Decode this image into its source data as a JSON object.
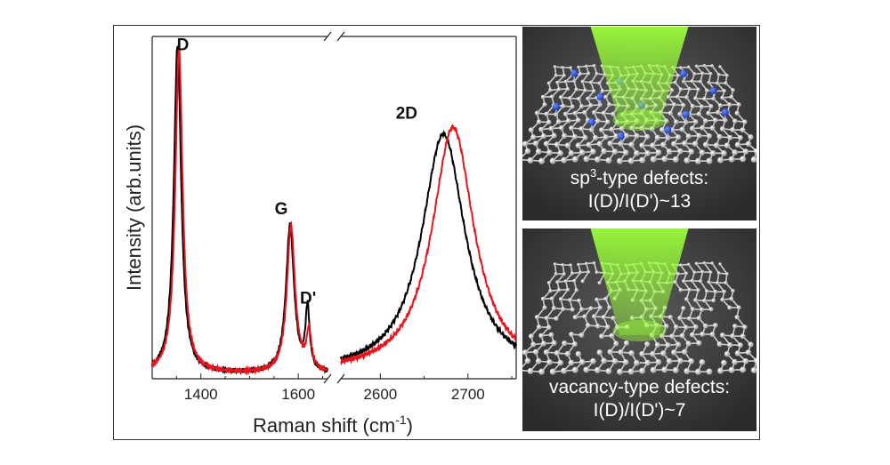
{
  "chart_data": {
    "type": "line",
    "ylabel": "Intensity (arb.units)",
    "xlabel": "Raman shift (cm",
    "xlabel_sup": "-1",
    "xlabel_end": ")",
    "x_segments": [
      {
        "xlim": [
          1300,
          1660
        ],
        "ticks": [
          1400,
          1600
        ]
      },
      {
        "xlim": [
          2555,
          2755
        ],
        "ticks": [
          2600,
          2700
        ]
      }
    ],
    "ylim": [
      0,
      1.0
    ],
    "peak_labels": [
      {
        "text": "D",
        "x": 1363,
        "y": 0.96
      },
      {
        "text": "G",
        "x": 1565,
        "y": 0.48
      },
      {
        "text": "D'",
        "x": 1620,
        "y": 0.22
      },
      {
        "text": "2D",
        "x": 2630,
        "y": 0.76
      }
    ],
    "series": [
      {
        "color": "#000000",
        "peaks": [
          {
            "center": 1352,
            "height": 0.96,
            "width": 9
          },
          {
            "center": 1583,
            "height": 0.43,
            "width": 10
          },
          {
            "center": 1619,
            "height": 0.18,
            "width": 5
          }
        ],
        "peaks_2": [
          {
            "center": 2672,
            "height": 0.7,
            "width": 30
          }
        ]
      },
      {
        "color": "#e8141d",
        "peaks": [
          {
            "center": 1355,
            "height": 0.95,
            "width": 9
          },
          {
            "center": 1585,
            "height": 0.43,
            "width": 10
          },
          {
            "center": 1622,
            "height": 0.11,
            "width": 6
          }
        ],
        "peaks_2": [
          {
            "center": 2683,
            "height": 0.72,
            "width": 29
          }
        ]
      }
    ]
  },
  "panels": {
    "top": {
      "caption_line1_a": "sp",
      "caption_line1_sup": "3",
      "caption_line1_b": "-type defects:",
      "caption_line2": "I(D)/I(D')~13"
    },
    "bottom": {
      "caption_line1": "vacancy-type defects:",
      "caption_line2": "I(D)/I(D')~7"
    }
  },
  "colors": {
    "laser": "#9cff3a",
    "panel_bg": "#3a3a3a",
    "atom": "#e8e8e8",
    "defect_atom": "#1c3fc2"
  }
}
